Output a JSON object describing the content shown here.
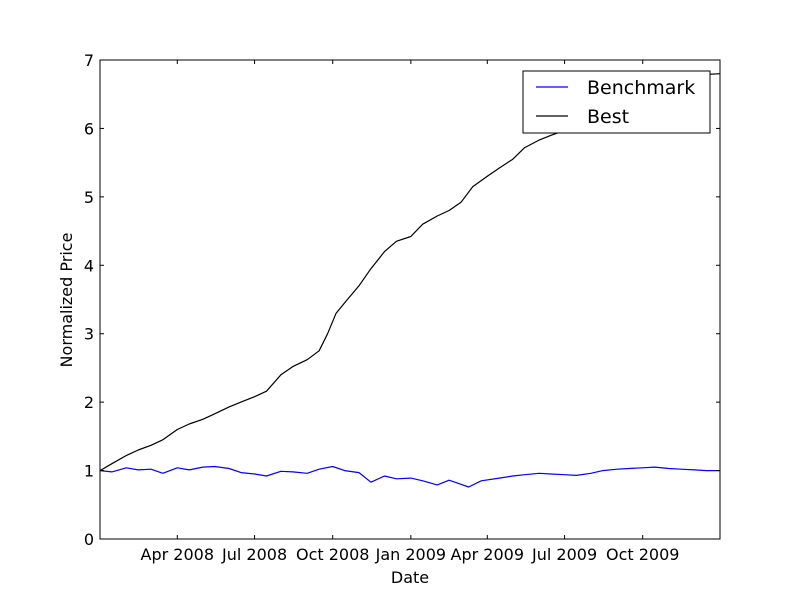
{
  "chart_data": {
    "type": "line",
    "xlabel": "Date",
    "ylabel": "Normalized Price",
    "xlim": [
      "2008-01-01",
      "2009-12-31"
    ],
    "ylim": [
      0,
      7
    ],
    "x_ticks": [
      {
        "date": "2008-04-01",
        "label": "Apr 2008"
      },
      {
        "date": "2008-07-01",
        "label": "Jul 2008"
      },
      {
        "date": "2008-10-01",
        "label": "Oct 2008"
      },
      {
        "date": "2009-01-01",
        "label": "Jan 2009"
      },
      {
        "date": "2009-04-01",
        "label": "Apr 2009"
      },
      {
        "date": "2009-07-01",
        "label": "Jul 2009"
      },
      {
        "date": "2009-10-01",
        "label": "Oct 2009"
      }
    ],
    "y_ticks": [
      0,
      1,
      2,
      3,
      4,
      5,
      6,
      7
    ],
    "grid": false,
    "legend": "top-right",
    "series": [
      {
        "name": "Benchmark",
        "color": "#0000ff",
        "points": [
          [
            "2008-01-01",
            1.0
          ],
          [
            "2008-01-15",
            0.98
          ],
          [
            "2008-02-01",
            1.04
          ],
          [
            "2008-02-15",
            1.01
          ],
          [
            "2008-03-01",
            1.02
          ],
          [
            "2008-03-15",
            0.96
          ],
          [
            "2008-04-01",
            1.04
          ],
          [
            "2008-04-15",
            1.01
          ],
          [
            "2008-05-01",
            1.05
          ],
          [
            "2008-05-15",
            1.06
          ],
          [
            "2008-06-01",
            1.03
          ],
          [
            "2008-06-15",
            0.97
          ],
          [
            "2008-07-01",
            0.95
          ],
          [
            "2008-07-15",
            0.92
          ],
          [
            "2008-08-01",
            0.99
          ],
          [
            "2008-08-15",
            0.98
          ],
          [
            "2008-09-01",
            0.96
          ],
          [
            "2008-09-15",
            1.02
          ],
          [
            "2008-10-01",
            1.06
          ],
          [
            "2008-10-15",
            1.0
          ],
          [
            "2008-11-01",
            0.97
          ],
          [
            "2008-11-15",
            0.83
          ],
          [
            "2008-12-01",
            0.92
          ],
          [
            "2008-12-15",
            0.88
          ],
          [
            "2009-01-01",
            0.89
          ],
          [
            "2009-01-15",
            0.85
          ],
          [
            "2009-02-01",
            0.79
          ],
          [
            "2009-02-15",
            0.86
          ],
          [
            "2009-03-01",
            0.8
          ],
          [
            "2009-03-10",
            0.76
          ],
          [
            "2009-03-25",
            0.85
          ],
          [
            "2009-04-15",
            0.89
          ],
          [
            "2009-05-01",
            0.92
          ],
          [
            "2009-05-15",
            0.94
          ],
          [
            "2009-06-01",
            0.96
          ],
          [
            "2009-06-15",
            0.95
          ],
          [
            "2009-07-01",
            0.94
          ],
          [
            "2009-07-15",
            0.93
          ],
          [
            "2009-08-01",
            0.96
          ],
          [
            "2009-08-15",
            1.0
          ],
          [
            "2009-09-01",
            1.02
          ],
          [
            "2009-09-15",
            1.03
          ],
          [
            "2009-10-01",
            1.04
          ],
          [
            "2009-10-15",
            1.05
          ],
          [
            "2009-11-01",
            1.03
          ],
          [
            "2009-11-15",
            1.02
          ],
          [
            "2009-12-01",
            1.01
          ],
          [
            "2009-12-15",
            1.0
          ],
          [
            "2009-12-31",
            1.0
          ]
        ]
      },
      {
        "name": "Best",
        "color": "#000000",
        "points": [
          [
            "2008-01-01",
            1.0
          ],
          [
            "2008-01-15",
            1.1
          ],
          [
            "2008-02-01",
            1.22
          ],
          [
            "2008-02-15",
            1.3
          ],
          [
            "2008-03-01",
            1.37
          ],
          [
            "2008-03-15",
            1.45
          ],
          [
            "2008-04-01",
            1.6
          ],
          [
            "2008-04-15",
            1.68
          ],
          [
            "2008-05-01",
            1.75
          ],
          [
            "2008-05-15",
            1.83
          ],
          [
            "2008-06-01",
            1.93
          ],
          [
            "2008-06-15",
            2.0
          ],
          [
            "2008-07-01",
            2.08
          ],
          [
            "2008-07-15",
            2.16
          ],
          [
            "2008-08-01",
            2.4
          ],
          [
            "2008-08-15",
            2.52
          ],
          [
            "2008-09-01",
            2.62
          ],
          [
            "2008-09-15",
            2.75
          ],
          [
            "2008-09-25",
            3.0
          ],
          [
            "2008-10-05",
            3.3
          ],
          [
            "2008-10-15",
            3.45
          ],
          [
            "2008-11-01",
            3.7
          ],
          [
            "2008-11-15",
            3.95
          ],
          [
            "2008-12-01",
            4.2
          ],
          [
            "2008-12-15",
            4.35
          ],
          [
            "2009-01-01",
            4.42
          ],
          [
            "2009-01-15",
            4.6
          ],
          [
            "2009-02-01",
            4.72
          ],
          [
            "2009-02-15",
            4.8
          ],
          [
            "2009-03-01",
            4.92
          ],
          [
            "2009-03-15",
            5.15
          ],
          [
            "2009-04-01",
            5.3
          ],
          [
            "2009-04-15",
            5.42
          ],
          [
            "2009-05-01",
            5.55
          ],
          [
            "2009-05-15",
            5.72
          ],
          [
            "2009-06-01",
            5.83
          ],
          [
            "2009-06-15",
            5.9
          ],
          [
            "2009-07-01",
            5.97
          ],
          [
            "2009-07-15",
            6.08
          ],
          [
            "2009-08-01",
            6.2
          ],
          [
            "2009-08-15",
            6.32
          ],
          [
            "2009-09-01",
            6.43
          ],
          [
            "2009-09-15",
            6.52
          ],
          [
            "2009-10-01",
            6.6
          ],
          [
            "2009-10-15",
            6.68
          ],
          [
            "2009-11-01",
            6.72
          ],
          [
            "2009-11-15",
            6.76
          ],
          [
            "2009-12-01",
            6.78
          ],
          [
            "2009-12-31",
            6.8
          ]
        ]
      }
    ]
  }
}
